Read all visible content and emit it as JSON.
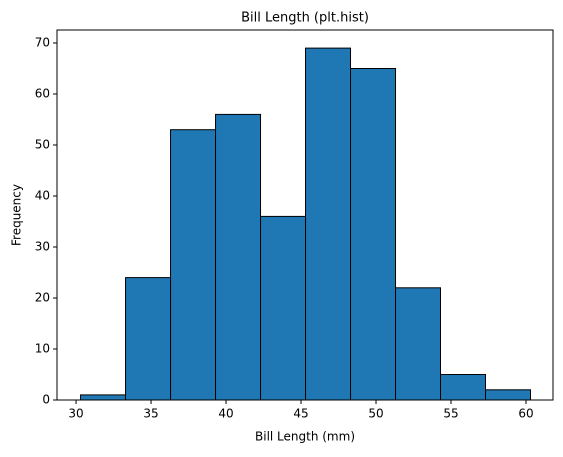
{
  "chart_data": {
    "type": "histogram",
    "title": "Bill Length (plt.hist)",
    "x_label": "Bill Length (mm)",
    "y_label": "Frequency",
    "bins": [
      30.3,
      33.3,
      36.3,
      39.3,
      42.3,
      45.3,
      48.3,
      51.3,
      54.3,
      57.3,
      60.3
    ],
    "values": [
      1,
      24,
      53,
      56,
      36,
      69,
      65,
      22,
      5,
      2
    ],
    "color": "#1f77b4",
    "edgecolor": "#000000",
    "xlim": [
      28.73,
      61.8
    ],
    "ylim": [
      0,
      72.55
    ],
    "xticks": [
      30,
      35,
      40,
      45,
      50,
      55,
      60
    ],
    "yticks": [
      0,
      10,
      20,
      30,
      40,
      50,
      60,
      70
    ],
    "grid": false
  }
}
